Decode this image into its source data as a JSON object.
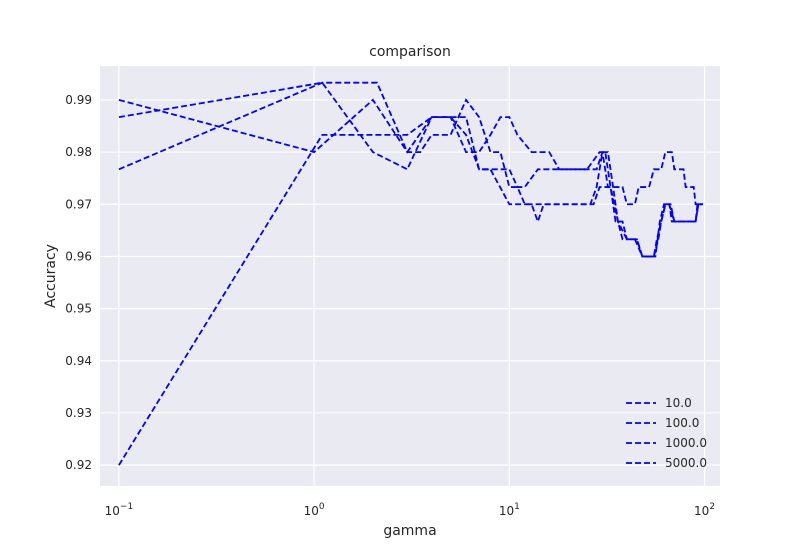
{
  "chart_data": {
    "type": "line",
    "title": "comparison",
    "xlabel": "gamma",
    "ylabel": "Accuracy",
    "xscale": "log",
    "xlim": [
      0.08,
      120
    ],
    "ylim": [
      0.916,
      0.9965
    ],
    "yticks": [
      0.92,
      0.93,
      0.94,
      0.95,
      0.96,
      0.97,
      0.98,
      0.99
    ],
    "ytick_labels": [
      "0.92",
      "0.93",
      "0.94",
      "0.95",
      "0.96",
      "0.97",
      "0.98",
      "0.99"
    ],
    "xticks": [
      0.1,
      1,
      10,
      100
    ],
    "xtick_labels": [
      {
        "base": "10",
        "exp": "−1"
      },
      {
        "base": "10",
        "exp": "0"
      },
      {
        "base": "10",
        "exp": "1"
      },
      {
        "base": "10",
        "exp": "2"
      }
    ],
    "grid": true,
    "legend_position": "lower-right",
    "line_color": "#0000ff",
    "line_style": "dashed",
    "background_color": "#eaeaf2",
    "series": [
      {
        "name": "10.0",
        "points": [
          [
            0.1,
            0.9767
          ],
          [
            1.1,
            0.9933
          ],
          [
            2.1,
            0.9933
          ],
          [
            3.0,
            0.98
          ],
          [
            4.0,
            0.9867
          ],
          [
            5.0,
            0.9867
          ],
          [
            6.0,
            0.9833
          ],
          [
            7.0,
            0.9767
          ],
          [
            8.0,
            0.9767
          ],
          [
            9.0,
            0.9767
          ],
          [
            10.0,
            0.9767
          ],
          [
            11.0,
            0.9733
          ],
          [
            12.0,
            0.9733
          ],
          [
            14.0,
            0.9767
          ],
          [
            16.0,
            0.9767
          ],
          [
            20.0,
            0.9767
          ],
          [
            25.0,
            0.9767
          ],
          [
            29.0,
            0.98
          ],
          [
            31.0,
            0.98
          ],
          [
            33.0,
            0.9733
          ],
          [
            35.0,
            0.9667
          ],
          [
            38.0,
            0.9667
          ],
          [
            40.0,
            0.9633
          ],
          [
            45.0,
            0.9633
          ],
          [
            48.0,
            0.96
          ],
          [
            55.0,
            0.96
          ],
          [
            57.0,
            0.9633
          ],
          [
            60.0,
            0.9667
          ],
          [
            63.0,
            0.97
          ],
          [
            66.0,
            0.97
          ],
          [
            68.0,
            0.9667
          ],
          [
            75.0,
            0.9667
          ],
          [
            90.0,
            0.9667
          ],
          [
            92.0,
            0.97
          ],
          [
            98.0,
            0.97
          ]
        ]
      },
      {
        "name": "100.0",
        "points": [
          [
            0.1,
            0.99
          ],
          [
            1.0,
            0.98
          ],
          [
            2.0,
            0.99
          ],
          [
            3.0,
            0.98
          ],
          [
            3.5,
            0.98
          ],
          [
            4.0,
            0.9833
          ],
          [
            5.0,
            0.9833
          ],
          [
            6.0,
            0.99
          ],
          [
            7.0,
            0.9867
          ],
          [
            8.0,
            0.98
          ],
          [
            9.0,
            0.98
          ],
          [
            10.0,
            0.9733
          ],
          [
            11.0,
            0.9733
          ],
          [
            12.0,
            0.97
          ],
          [
            14.0,
            0.97
          ],
          [
            20.0,
            0.97
          ],
          [
            26.0,
            0.97
          ],
          [
            28.0,
            0.9733
          ],
          [
            30.0,
            0.98
          ],
          [
            32.0,
            0.98
          ],
          [
            34.0,
            0.9733
          ],
          [
            36.0,
            0.9667
          ],
          [
            40.0,
            0.9633
          ],
          [
            45.0,
            0.9633
          ],
          [
            48.0,
            0.96
          ],
          [
            55.0,
            0.96
          ],
          [
            58.0,
            0.9633
          ],
          [
            60.0,
            0.9667
          ],
          [
            63.0,
            0.97
          ],
          [
            67.0,
            0.97
          ],
          [
            70.0,
            0.9667
          ],
          [
            90.0,
            0.9667
          ],
          [
            93.0,
            0.97
          ],
          [
            98.0,
            0.97
          ]
        ]
      },
      {
        "name": "1000.0",
        "points": [
          [
            0.1,
            0.9867
          ],
          [
            1.1,
            0.9933
          ],
          [
            2.0,
            0.98
          ],
          [
            3.0,
            0.9767
          ],
          [
            4.0,
            0.9867
          ],
          [
            5.0,
            0.9867
          ],
          [
            6.0,
            0.98
          ],
          [
            7.0,
            0.98
          ],
          [
            8.0,
            0.9833
          ],
          [
            9.0,
            0.9867
          ],
          [
            10.0,
            0.9867
          ],
          [
            11.0,
            0.9833
          ],
          [
            13.0,
            0.98
          ],
          [
            16.0,
            0.98
          ],
          [
            18.0,
            0.9767
          ],
          [
            22.0,
            0.9767
          ],
          [
            28.0,
            0.9767
          ],
          [
            30.0,
            0.98
          ],
          [
            32.0,
            0.9733
          ],
          [
            38.0,
            0.9733
          ],
          [
            40.0,
            0.97
          ],
          [
            44.0,
            0.97
          ],
          [
            46.0,
            0.9733
          ],
          [
            52.0,
            0.9733
          ],
          [
            55.0,
            0.9767
          ],
          [
            60.0,
            0.9767
          ],
          [
            63.0,
            0.98
          ],
          [
            68.0,
            0.98
          ],
          [
            70.0,
            0.9767
          ],
          [
            78.0,
            0.9767
          ],
          [
            80.0,
            0.9733
          ],
          [
            88.0,
            0.9733
          ],
          [
            90.0,
            0.97
          ],
          [
            98.0,
            0.97
          ]
        ]
      },
      {
        "name": "5000.0",
        "points": [
          [
            0.1,
            0.92
          ],
          [
            1.1,
            0.9833
          ],
          [
            3.0,
            0.9833
          ],
          [
            4.0,
            0.9867
          ],
          [
            6.0,
            0.9867
          ],
          [
            7.0,
            0.9767
          ],
          [
            8.0,
            0.9767
          ],
          [
            10.0,
            0.97
          ],
          [
            13.0,
            0.97
          ],
          [
            14.0,
            0.9667
          ],
          [
            15.0,
            0.97
          ],
          [
            20.0,
            0.97
          ],
          [
            27.0,
            0.97
          ],
          [
            29.0,
            0.9733
          ],
          [
            33.0,
            0.9733
          ],
          [
            36.0,
            0.9667
          ],
          [
            38.0,
            0.9633
          ],
          [
            44.0,
            0.9633
          ],
          [
            48.0,
            0.96
          ],
          [
            56.0,
            0.96
          ],
          [
            59.0,
            0.9667
          ],
          [
            62.0,
            0.97
          ],
          [
            66.0,
            0.97
          ],
          [
            70.0,
            0.9667
          ],
          [
            90.0,
            0.9667
          ],
          [
            93.0,
            0.97
          ],
          [
            98.0,
            0.97
          ]
        ]
      }
    ]
  }
}
